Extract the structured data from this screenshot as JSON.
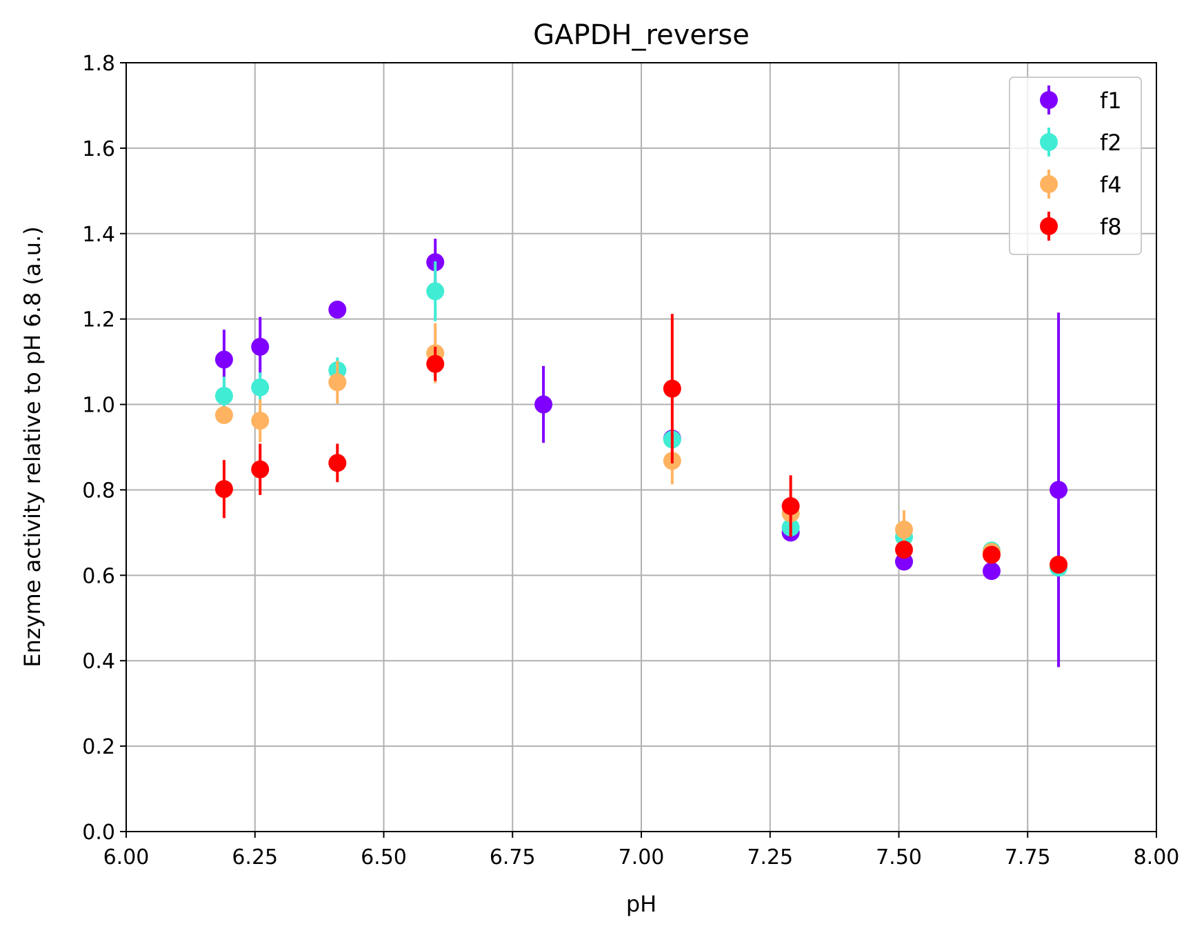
{
  "chart_data": {
    "type": "scatter",
    "title": "GAPDH_reverse",
    "xlabel": "pH",
    "ylabel": "Enzyme activity relative to pH 6.8 (a.u.)",
    "xlim": [
      6.0,
      8.0
    ],
    "ylim": [
      0.0,
      1.8
    ],
    "xticks": [
      "6.00",
      "6.25",
      "6.50",
      "6.75",
      "7.00",
      "7.25",
      "7.50",
      "7.75",
      "8.00"
    ],
    "yticks": [
      "0.0",
      "0.2",
      "0.4",
      "0.6",
      "0.8",
      "1.0",
      "1.2",
      "1.4",
      "1.6",
      "1.8"
    ],
    "grid": true,
    "legend_position": "top-right",
    "error_bars": true,
    "series": [
      {
        "name": "f1",
        "color": "#8000ff",
        "points": [
          {
            "x": 6.19,
            "y": 1.105,
            "err": 0.07
          },
          {
            "x": 6.26,
            "y": 1.135,
            "err": 0.07
          },
          {
            "x": 6.41,
            "y": 1.222,
            "err": 0.0
          },
          {
            "x": 6.6,
            "y": 1.333,
            "err": 0.055
          },
          {
            "x": 6.81,
            "y": 1.0,
            "err": 0.09
          },
          {
            "x": 7.06,
            "y": 0.92,
            "err": 0.0
          },
          {
            "x": 7.29,
            "y": 0.7,
            "err": 0.0
          },
          {
            "x": 7.51,
            "y": 0.632,
            "err": 0.0
          },
          {
            "x": 7.68,
            "y": 0.61,
            "err": 0.0
          },
          {
            "x": 7.81,
            "y": 0.8,
            "err": 0.415
          }
        ]
      },
      {
        "name": "f2",
        "color": "#40ecd4",
        "points": [
          {
            "x": 6.19,
            "y": 1.02,
            "err": 0.045
          },
          {
            "x": 6.26,
            "y": 1.04,
            "err": 0.035
          },
          {
            "x": 6.41,
            "y": 1.08,
            "err": 0.03
          },
          {
            "x": 6.6,
            "y": 1.265,
            "err": 0.07
          },
          {
            "x": 7.06,
            "y": 0.918,
            "err": 0.0
          },
          {
            "x": 7.29,
            "y": 0.712,
            "err": 0.0
          },
          {
            "x": 7.51,
            "y": 0.69,
            "err": 0.0
          },
          {
            "x": 7.68,
            "y": 0.658,
            "err": 0.0
          },
          {
            "x": 7.81,
            "y": 0.618,
            "err": 0.0
          }
        ]
      },
      {
        "name": "f4",
        "color": "#ffb360",
        "points": [
          {
            "x": 6.19,
            "y": 0.975,
            "err": 0.0
          },
          {
            "x": 6.26,
            "y": 0.962,
            "err": 0.05
          },
          {
            "x": 6.41,
            "y": 1.052,
            "err": 0.05
          },
          {
            "x": 6.6,
            "y": 1.12,
            "err": 0.07
          },
          {
            "x": 7.06,
            "y": 0.868,
            "err": 0.055
          },
          {
            "x": 7.29,
            "y": 0.745,
            "err": 0.0
          },
          {
            "x": 7.51,
            "y": 0.707,
            "err": 0.045
          },
          {
            "x": 7.68,
            "y": 0.655,
            "err": 0.0
          },
          {
            "x": 7.81,
            "y": 0.625,
            "err": 0.0
          }
        ]
      },
      {
        "name": "f8",
        "color": "#ff0000",
        "points": [
          {
            "x": 6.19,
            "y": 0.802,
            "err": 0.068
          },
          {
            "x": 6.26,
            "y": 0.848,
            "err": 0.06
          },
          {
            "x": 6.41,
            "y": 0.863,
            "err": 0.045
          },
          {
            "x": 6.6,
            "y": 1.095,
            "err": 0.04
          },
          {
            "x": 7.06,
            "y": 1.037,
            "err": 0.175
          },
          {
            "x": 7.29,
            "y": 0.762,
            "err": 0.072
          },
          {
            "x": 7.51,
            "y": 0.66,
            "err": 0.0
          },
          {
            "x": 7.68,
            "y": 0.648,
            "err": 0.0
          },
          {
            "x": 7.81,
            "y": 0.625,
            "err": 0.0
          }
        ]
      }
    ]
  }
}
